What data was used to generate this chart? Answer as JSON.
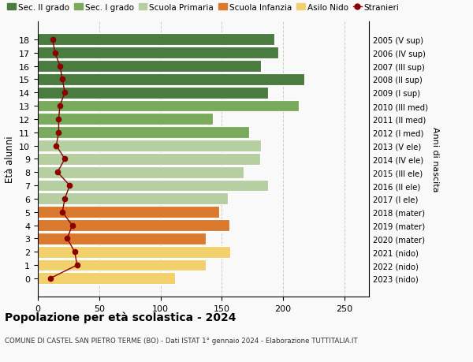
{
  "ages": [
    0,
    1,
    2,
    3,
    4,
    5,
    6,
    7,
    8,
    9,
    10,
    11,
    12,
    13,
    14,
    15,
    16,
    17,
    18
  ],
  "right_labels": [
    "2023 (nido)",
    "2022 (nido)",
    "2021 (nido)",
    "2020 (mater)",
    "2019 (mater)",
    "2018 (mater)",
    "2017 (I ele)",
    "2016 (II ele)",
    "2015 (III ele)",
    "2014 (IV ele)",
    "2013 (V ele)",
    "2012 (I med)",
    "2011 (II med)",
    "2010 (III med)",
    "2009 (I sup)",
    "2008 (II sup)",
    "2007 (III sup)",
    "2006 (IV sup)",
    "2005 (V sup)"
  ],
  "bar_values": [
    112,
    137,
    157,
    137,
    156,
    148,
    155,
    188,
    168,
    181,
    182,
    172,
    143,
    213,
    188,
    217,
    182,
    196,
    193
  ],
  "bar_colors": [
    "#f2d06b",
    "#f2d06b",
    "#f2d06b",
    "#d97a2e",
    "#d97a2e",
    "#d97a2e",
    "#b5cfa0",
    "#b5cfa0",
    "#b5cfa0",
    "#b5cfa0",
    "#b5cfa0",
    "#7aab5c",
    "#7aab5c",
    "#7aab5c",
    "#4a7c3f",
    "#4a7c3f",
    "#4a7c3f",
    "#4a7c3f",
    "#4a7c3f"
  ],
  "stranieri_values": [
    10,
    32,
    30,
    24,
    28,
    20,
    22,
    26,
    16,
    22,
    15,
    17,
    17,
    18,
    22,
    20,
    18,
    14,
    12
  ],
  "stranieri_color": "#8b0000",
  "title": "Popolazione per età scolastica - 2024",
  "subtitle": "COMUNE DI CASTEL SAN PIETRO TERME (BO) - Dati ISTAT 1° gennaio 2024 - Elaborazione TUTTITALIA.IT",
  "ylabel": "Età alunni",
  "right_ylabel": "Anni di nascita",
  "xlim": [
    0,
    270
  ],
  "xticks": [
    0,
    50,
    100,
    150,
    200,
    250
  ],
  "background_color": "#f9f9f9",
  "legend_labels": [
    "Sec. II grado",
    "Sec. I grado",
    "Scuola Primaria",
    "Scuola Infanzia",
    "Asilo Nido",
    "Stranieri"
  ],
  "legend_colors": [
    "#4a7c3f",
    "#7aab5c",
    "#b5cfa0",
    "#d97a2e",
    "#f2d06b",
    "#8b0000"
  ],
  "bar_height": 0.88,
  "grid_color": "#cccccc"
}
